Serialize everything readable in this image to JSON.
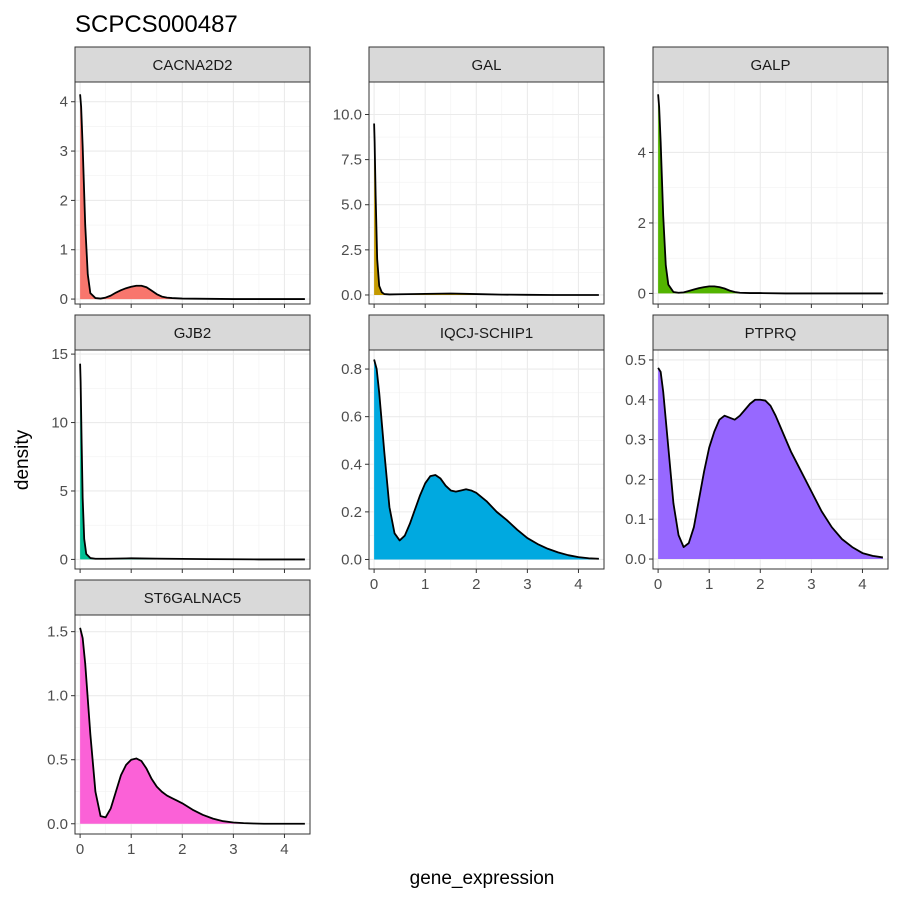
{
  "title": "SCPCS000487",
  "chart_data": {
    "type": "area",
    "title": "SCPCS000487",
    "xlabel": "gene_expression",
    "ylabel": "density",
    "xlim": [
      -0.1,
      4.5
    ],
    "x_ticks": [
      0,
      1,
      2,
      3,
      4
    ],
    "grid": true,
    "legend": "none",
    "facets": [
      {
        "label": "CACNA2D2",
        "color": "#F8766D",
        "ylim": [
          -0.1,
          4.4
        ],
        "y_ticks": [
          0,
          1,
          2,
          3,
          4
        ],
        "y_tick_labels": [
          "0",
          "1",
          "2",
          "3",
          "4"
        ],
        "x": [
          0.0,
          0.02,
          0.05,
          0.1,
          0.15,
          0.2,
          0.3,
          0.4,
          0.5,
          0.6,
          0.7,
          0.8,
          0.9,
          1.0,
          1.1,
          1.2,
          1.3,
          1.4,
          1.5,
          1.6,
          1.7,
          1.8,
          2.0,
          2.5,
          3.0,
          3.5,
          4.0,
          4.4
        ],
        "y": [
          4.15,
          3.9,
          3.1,
          1.5,
          0.5,
          0.12,
          0.02,
          0.01,
          0.03,
          0.07,
          0.13,
          0.18,
          0.22,
          0.25,
          0.27,
          0.27,
          0.24,
          0.17,
          0.1,
          0.05,
          0.03,
          0.02,
          0.01,
          0.005,
          0.0,
          0.0,
          0.0,
          0.0
        ]
      },
      {
        "label": "GAL",
        "color": "#C49A00",
        "ylim": [
          -0.5,
          11.8
        ],
        "y_ticks": [
          0,
          2.5,
          5,
          7.5,
          10
        ],
        "y_tick_labels": [
          "0.0",
          "2.5",
          "5.0",
          "7.5",
          "10.0"
        ],
        "x": [
          0.0,
          0.01,
          0.03,
          0.06,
          0.1,
          0.15,
          0.2,
          0.3,
          0.5,
          1.0,
          1.5,
          2.0,
          2.5,
          3.0,
          3.5,
          4.0,
          4.4
        ],
        "y": [
          9.5,
          8.5,
          5.5,
          2.0,
          0.5,
          0.15,
          0.05,
          0.03,
          0.04,
          0.06,
          0.08,
          0.05,
          0.02,
          0.01,
          0.0,
          0.0,
          0.0
        ]
      },
      {
        "label": "GALP",
        "color": "#53B400",
        "ylim": [
          -0.3,
          6.0
        ],
        "y_ticks": [
          0,
          2,
          4
        ],
        "y_tick_labels": [
          "0",
          "2",
          "4"
        ],
        "x": [
          0.0,
          0.02,
          0.05,
          0.1,
          0.15,
          0.2,
          0.3,
          0.4,
          0.5,
          0.6,
          0.7,
          0.8,
          0.9,
          1.0,
          1.1,
          1.2,
          1.3,
          1.4,
          1.5,
          1.6,
          1.8,
          2.0,
          2.5,
          3.0,
          3.5,
          4.0,
          4.4
        ],
        "y": [
          5.65,
          5.3,
          4.3,
          2.2,
          0.8,
          0.25,
          0.04,
          0.02,
          0.03,
          0.07,
          0.11,
          0.15,
          0.18,
          0.2,
          0.2,
          0.18,
          0.14,
          0.08,
          0.04,
          0.02,
          0.01,
          0.01,
          0.0,
          0.0,
          0.0,
          0.0,
          0.0
        ]
      },
      {
        "label": "GJB2",
        "color": "#00C094",
        "ylim": [
          -0.7,
          15.3
        ],
        "y_ticks": [
          0,
          5,
          10,
          15
        ],
        "y_tick_labels": [
          "0",
          "5",
          "10",
          "15"
        ],
        "x": [
          0.0,
          0.01,
          0.03,
          0.05,
          0.08,
          0.12,
          0.2,
          0.3,
          0.5,
          1.0,
          1.5,
          2.0,
          2.5,
          3.0,
          3.5,
          4.0,
          4.4
        ],
        "y": [
          14.3,
          13.0,
          8.5,
          4.5,
          1.5,
          0.4,
          0.1,
          0.05,
          0.05,
          0.08,
          0.06,
          0.04,
          0.02,
          0.01,
          0.0,
          0.0,
          0.0
        ]
      },
      {
        "label": "IQCJ-SCHIP1",
        "color": "#00A9E0",
        "ylim": [
          -0.04,
          0.88
        ],
        "y_ticks": [
          0,
          0.2,
          0.4,
          0.6,
          0.8
        ],
        "y_tick_labels": [
          "0.0",
          "0.2",
          "0.4",
          "0.6",
          "0.8"
        ],
        "x": [
          0.0,
          0.05,
          0.1,
          0.2,
          0.3,
          0.4,
          0.5,
          0.6,
          0.7,
          0.8,
          0.9,
          1.0,
          1.1,
          1.2,
          1.3,
          1.4,
          1.5,
          1.6,
          1.7,
          1.8,
          1.9,
          2.0,
          2.2,
          2.4,
          2.6,
          2.8,
          3.0,
          3.2,
          3.4,
          3.6,
          3.8,
          4.0,
          4.2,
          4.4
        ],
        "y": [
          0.84,
          0.8,
          0.7,
          0.45,
          0.22,
          0.11,
          0.08,
          0.1,
          0.15,
          0.21,
          0.27,
          0.32,
          0.35,
          0.355,
          0.34,
          0.31,
          0.29,
          0.285,
          0.29,
          0.295,
          0.29,
          0.28,
          0.245,
          0.2,
          0.165,
          0.125,
          0.09,
          0.065,
          0.045,
          0.03,
          0.018,
          0.01,
          0.005,
          0.003
        ]
      },
      {
        "label": "PTPRQ",
        "color": "#9768FF",
        "ylim": [
          -0.025,
          0.525
        ],
        "y_ticks": [
          0,
          0.1,
          0.2,
          0.3,
          0.4,
          0.5
        ],
        "y_tick_labels": [
          "0.0",
          "0.1",
          "0.2",
          "0.3",
          "0.4",
          "0.5"
        ],
        "x": [
          0.0,
          0.05,
          0.1,
          0.2,
          0.3,
          0.4,
          0.5,
          0.6,
          0.7,
          0.8,
          0.9,
          1.0,
          1.1,
          1.2,
          1.3,
          1.4,
          1.5,
          1.6,
          1.7,
          1.8,
          1.9,
          2.0,
          2.1,
          2.2,
          2.3,
          2.4,
          2.5,
          2.6,
          2.8,
          3.0,
          3.2,
          3.4,
          3.6,
          3.8,
          4.0,
          4.2,
          4.4
        ],
        "y": [
          0.48,
          0.47,
          0.42,
          0.28,
          0.14,
          0.06,
          0.03,
          0.04,
          0.08,
          0.15,
          0.22,
          0.28,
          0.32,
          0.35,
          0.36,
          0.355,
          0.35,
          0.36,
          0.375,
          0.39,
          0.4,
          0.4,
          0.398,
          0.385,
          0.36,
          0.33,
          0.3,
          0.27,
          0.22,
          0.17,
          0.12,
          0.08,
          0.05,
          0.03,
          0.015,
          0.008,
          0.004
        ]
      },
      {
        "label": "ST6GALNAC5",
        "color": "#FB61D7",
        "ylim": [
          -0.08,
          1.63
        ],
        "y_ticks": [
          0,
          0.5,
          1.0,
          1.5
        ],
        "y_tick_labels": [
          "0.0",
          "0.5",
          "1.0",
          "1.5"
        ],
        "x": [
          0.0,
          0.05,
          0.1,
          0.2,
          0.3,
          0.4,
          0.5,
          0.6,
          0.7,
          0.8,
          0.9,
          1.0,
          1.1,
          1.2,
          1.3,
          1.4,
          1.5,
          1.6,
          1.7,
          1.8,
          1.9,
          2.0,
          2.2,
          2.4,
          2.6,
          2.8,
          3.0,
          3.2,
          3.4,
          3.6,
          4.0,
          4.4
        ],
        "y": [
          1.53,
          1.45,
          1.25,
          0.7,
          0.25,
          0.06,
          0.05,
          0.12,
          0.25,
          0.38,
          0.46,
          0.5,
          0.51,
          0.49,
          0.43,
          0.35,
          0.29,
          0.25,
          0.22,
          0.2,
          0.18,
          0.16,
          0.11,
          0.07,
          0.04,
          0.02,
          0.01,
          0.005,
          0.002,
          0.0,
          0.0,
          0.0
        ]
      }
    ]
  }
}
